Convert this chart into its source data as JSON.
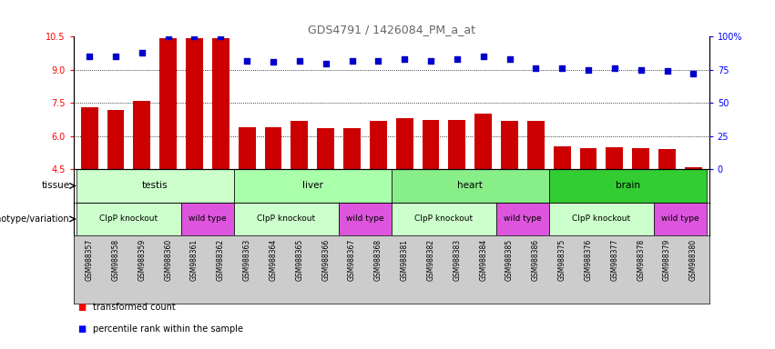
{
  "title": "GDS4791 / 1426084_PM_a_at",
  "samples": [
    "GSM988357",
    "GSM988358",
    "GSM988359",
    "GSM988360",
    "GSM988361",
    "GSM988362",
    "GSM988363",
    "GSM988364",
    "GSM988365",
    "GSM988366",
    "GSM988367",
    "GSM988368",
    "GSM988381",
    "GSM988382",
    "GSM988383",
    "GSM988384",
    "GSM988385",
    "GSM988386",
    "GSM988375",
    "GSM988376",
    "GSM988377",
    "GSM988378",
    "GSM988379",
    "GSM988380"
  ],
  "bar_values": [
    7.3,
    7.2,
    7.6,
    10.45,
    10.45,
    10.45,
    6.4,
    6.4,
    6.7,
    6.35,
    6.35,
    6.7,
    6.8,
    6.75,
    6.75,
    7.0,
    6.7,
    6.7,
    5.55,
    5.45,
    5.5,
    5.45,
    5.4,
    4.6
  ],
  "percentile_values": [
    85,
    85,
    88,
    100,
    100,
    100,
    82,
    81,
    82,
    80,
    82,
    82,
    83,
    82,
    83,
    85,
    83,
    76,
    76,
    75,
    76,
    75,
    74,
    72
  ],
  "ylim_left": [
    4.5,
    10.5
  ],
  "ylim_right": [
    0,
    100
  ],
  "yticks_left": [
    4.5,
    6.0,
    7.5,
    9.0,
    10.5
  ],
  "yticks_right": [
    0,
    25,
    50,
    75,
    100
  ],
  "bar_color": "#cc0000",
  "dot_color": "#0000cc",
  "gridlines": [
    6.0,
    7.5,
    9.0
  ],
  "tissue_groups": [
    {
      "label": "testis",
      "start": 0,
      "end": 5,
      "color": "#ccffcc"
    },
    {
      "label": "liver",
      "start": 6,
      "end": 11,
      "color": "#aaffaa"
    },
    {
      "label": "heart",
      "start": 12,
      "end": 17,
      "color": "#88ee88"
    },
    {
      "label": "brain",
      "start": 18,
      "end": 23,
      "color": "#33cc33"
    }
  ],
  "genotype_groups": [
    {
      "label": "ClpP knockout",
      "start": 0,
      "end": 3,
      "color": "#ccffcc"
    },
    {
      "label": "wild type",
      "start": 4,
      "end": 5,
      "color": "#dd55dd"
    },
    {
      "label": "ClpP knockout",
      "start": 6,
      "end": 9,
      "color": "#ccffcc"
    },
    {
      "label": "wild type",
      "start": 10,
      "end": 11,
      "color": "#dd55dd"
    },
    {
      "label": "ClpP knockout",
      "start": 12,
      "end": 15,
      "color": "#ccffcc"
    },
    {
      "label": "wild type",
      "start": 16,
      "end": 17,
      "color": "#dd55dd"
    },
    {
      "label": "ClpP knockout",
      "start": 18,
      "end": 21,
      "color": "#ccffcc"
    },
    {
      "label": "wild type",
      "start": 22,
      "end": 23,
      "color": "#dd55dd"
    }
  ],
  "legend_items": [
    {
      "label": "transformed count",
      "color": "#cc0000"
    },
    {
      "label": "percentile rank within the sample",
      "color": "#0000cc"
    }
  ],
  "xtick_bg_color": "#cccccc",
  "title_color": "#666666"
}
